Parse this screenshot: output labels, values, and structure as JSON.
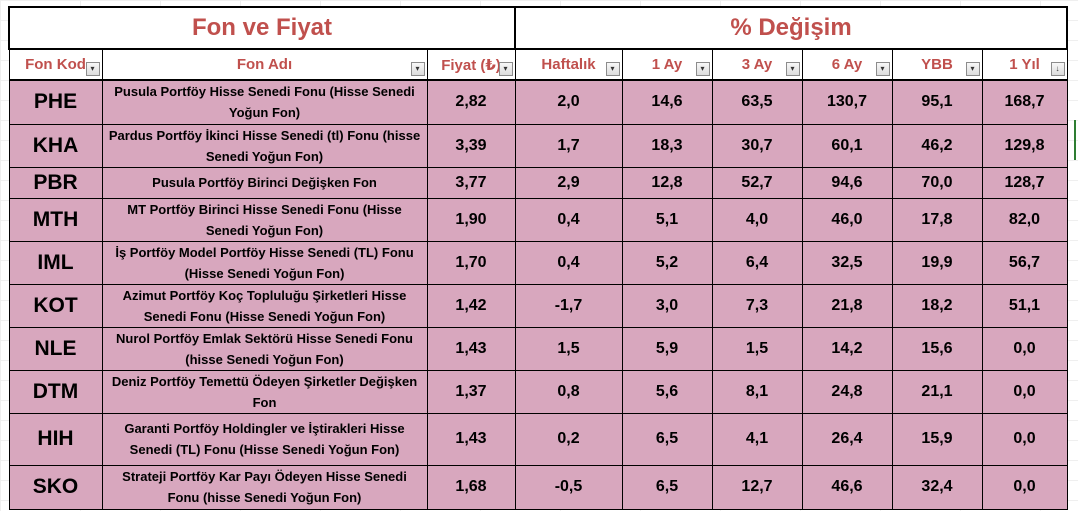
{
  "groups": {
    "left": "Fon ve Fiyat",
    "right": "% Değişim"
  },
  "columns": [
    "Fon Kod",
    "Fon Adı",
    "Fiyat (₺)",
    "Haftalık",
    "1 Ay",
    "3 Ay",
    "6 Ay",
    "YBB",
    "1 Yıl"
  ],
  "dropdown_icons": {
    "normal": "▾",
    "sorted": "↓"
  },
  "rows": [
    {
      "code": "PHE",
      "name": "Pusula Portföy Hisse Senedi Fonu (Hisse Senedi Yoğun Fon)",
      "price": "2,82",
      "weekly": "2,0",
      "m1": "14,6",
      "m3": "63,5",
      "m6": "130,7",
      "ytd": "95,1",
      "y1": "168,7"
    },
    {
      "code": "KHA",
      "name": "Pardus Portföy İkinci Hisse Senedi (tl) Fonu (hisse Senedi Yoğun Fon)",
      "price": "3,39",
      "weekly": "1,7",
      "m1": "18,3",
      "m3": "30,7",
      "m6": "60,1",
      "ytd": "46,2",
      "y1": "129,8"
    },
    {
      "code": "PBR",
      "name": "Pusula Portföy Birinci Değişken Fon",
      "price": "3,77",
      "weekly": "2,9",
      "m1": "12,8",
      "m3": "52,7",
      "m6": "94,6",
      "ytd": "70,0",
      "y1": "128,7"
    },
    {
      "code": "MTH",
      "name": "MT Portföy Birinci Hisse Senedi Fonu (Hisse Senedi Yoğun Fon)",
      "price": "1,90",
      "weekly": "0,4",
      "m1": "5,1",
      "m3": "4,0",
      "m6": "46,0",
      "ytd": "17,8",
      "y1": "82,0"
    },
    {
      "code": "IML",
      "name": "İş Portföy Model Portföy Hisse Senedi (TL) Fonu (Hisse Senedi Yoğun Fon)",
      "price": "1,70",
      "weekly": "0,4",
      "m1": "5,2",
      "m3": "6,4",
      "m6": "32,5",
      "ytd": "19,9",
      "y1": "56,7"
    },
    {
      "code": "KOT",
      "name": "Azimut Portföy Koç Topluluğu Şirketleri Hisse Senedi Fonu (Hisse Senedi Yoğun Fon)",
      "price": "1,42",
      "weekly": "-1,7",
      "m1": "3,0",
      "m3": "7,3",
      "m6": "21,8",
      "ytd": "18,2",
      "y1": "51,1"
    },
    {
      "code": "NLE",
      "name": "Nurol Portföy Emlak Sektörü Hisse Senedi Fonu (hisse Senedi Yoğun Fon)",
      "price": "1,43",
      "weekly": "1,5",
      "m1": "5,9",
      "m3": "1,5",
      "m6": "14,2",
      "ytd": "15,6",
      "y1": "0,0"
    },
    {
      "code": "DTM",
      "name": "Deniz Portföy Temettü Ödeyen Şirketler Değişken Fon",
      "price": "1,37",
      "weekly": "0,8",
      "m1": "5,6",
      "m3": "8,1",
      "m6": "24,8",
      "ytd": "21,1",
      "y1": "0,0"
    },
    {
      "code": "HIH",
      "name": "Garanti  Portföy Holdingler ve İştirakleri Hisse Senedi (TL) Fonu (Hisse Senedi Yoğun Fon)",
      "price": "1,43",
      "weekly": "0,2",
      "m1": "6,5",
      "m3": "4,1",
      "m6": "26,4",
      "ytd": "15,9",
      "y1": "0,0"
    },
    {
      "code": "SKO",
      "name": "Strateji Portföy Kar Payı Ödeyen Hisse Senedi Fonu (hisse Senedi Yoğun Fon)",
      "price": "1,68",
      "weekly": "-0,5",
      "m1": "6,5",
      "m3": "12,7",
      "m6": "46,6",
      "ytd": "32,4",
      "y1": "0,0"
    }
  ]
}
